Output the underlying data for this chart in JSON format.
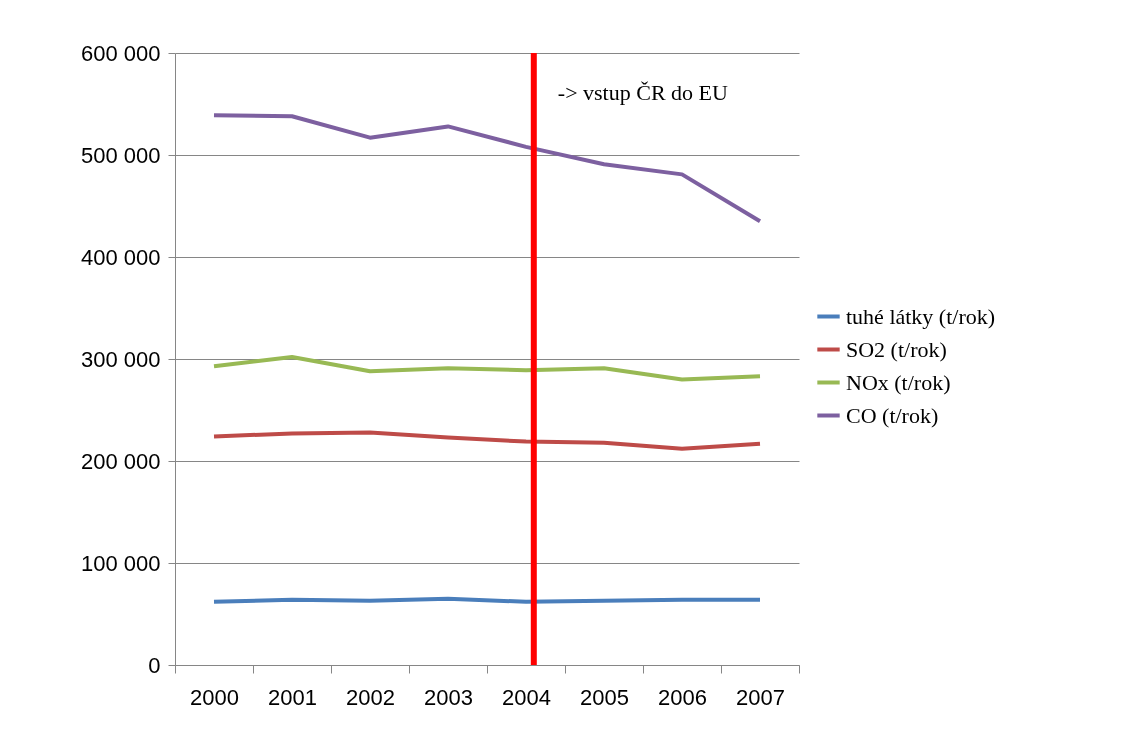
{
  "chart_data": {
    "type": "line",
    "categories": [
      "2000",
      "2001",
      "2002",
      "2003",
      "2004",
      "2005",
      "2006",
      "2007"
    ],
    "series": [
      {
        "name": "tuhé látky (t/rok)",
        "color": "#4a7ebb",
        "values": [
          62000,
          64000,
          63000,
          65000,
          62000,
          63000,
          64000,
          64000
        ]
      },
      {
        "name": "SO2 (t/rok)",
        "color": "#be4b48",
        "values": [
          224000,
          227000,
          228000,
          223000,
          219000,
          218000,
          212000,
          217000
        ]
      },
      {
        "name": "NOx (t/rok)",
        "color": "#98b954",
        "values": [
          293000,
          302000,
          288000,
          291000,
          289000,
          291000,
          280000,
          283000
        ]
      },
      {
        "name": "CO (t/rok)",
        "color": "#7d60a0",
        "values": [
          539000,
          538000,
          517000,
          528000,
          508000,
          491000,
          481000,
          435000
        ]
      }
    ],
    "ylim": [
      0,
      600000
    ],
    "yticks": [
      {
        "value": 0,
        "label": "0"
      },
      {
        "value": 100000,
        "label": "100 000"
      },
      {
        "value": 200000,
        "label": "200 000"
      },
      {
        "value": 300000,
        "label": "300 000"
      },
      {
        "value": 400000,
        "label": "400 000"
      },
      {
        "value": 500000,
        "label": "500 000"
      },
      {
        "value": 600000,
        "label": "600 000"
      }
    ],
    "ref_lines": [
      {
        "axis": "x",
        "value": "2004",
        "label": "-> vstup ČR do EU",
        "color": "#ff0000"
      }
    ],
    "grid": "y",
    "legend": "right",
    "marker": "none",
    "line_style": "solid"
  }
}
